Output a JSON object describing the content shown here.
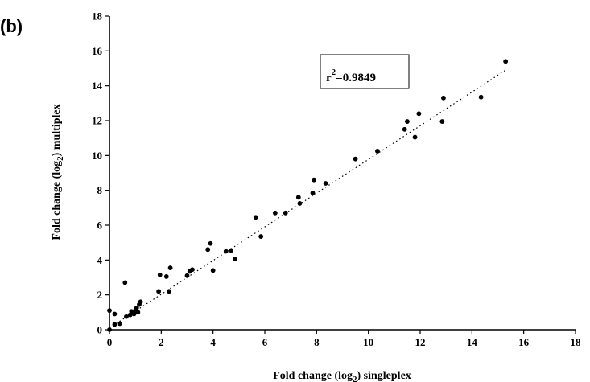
{
  "panel_label": "(b)",
  "chart_data": {
    "type": "scatter",
    "xlabel_parts": [
      "Fold change (log",
      "2",
      ") singleplex"
    ],
    "ylabel_parts": [
      "Fold change (log",
      "2",
      ") multiplex"
    ],
    "annotation": {
      "prefix": "r",
      "sup": "2",
      "suffix": "=0.9849"
    },
    "xlim": [
      0,
      18
    ],
    "ylim": [
      0,
      18
    ],
    "x_ticks": [
      0,
      2,
      4,
      6,
      8,
      10,
      12,
      14,
      16,
      18
    ],
    "y_ticks": [
      0,
      2,
      4,
      6,
      8,
      10,
      12,
      14,
      16,
      18
    ],
    "grid": false,
    "trendline": {
      "style": "dotted",
      "x": [
        0,
        15.3
      ],
      "y": [
        0.1,
        14.9
      ]
    },
    "points": [
      [
        0.0,
        1.1
      ],
      [
        0.0,
        0.0
      ],
      [
        0.2,
        0.9
      ],
      [
        0.2,
        0.3
      ],
      [
        0.4,
        0.35
      ],
      [
        0.6,
        2.7
      ],
      [
        0.65,
        0.75
      ],
      [
        0.8,
        0.85
      ],
      [
        0.85,
        1.05
      ],
      [
        0.95,
        0.9
      ],
      [
        1.0,
        1.1
      ],
      [
        1.05,
        1.25
      ],
      [
        1.1,
        1.0
      ],
      [
        1.15,
        1.45
      ],
      [
        1.2,
        1.6
      ],
      [
        1.9,
        2.2
      ],
      [
        1.95,
        3.15
      ],
      [
        2.2,
        3.05
      ],
      [
        2.3,
        2.2
      ],
      [
        2.35,
        3.55
      ],
      [
        3.0,
        3.1
      ],
      [
        3.1,
        3.35
      ],
      [
        3.2,
        3.45
      ],
      [
        3.8,
        4.6
      ],
      [
        3.9,
        4.95
      ],
      [
        4.0,
        3.4
      ],
      [
        4.5,
        4.5
      ],
      [
        4.7,
        4.55
      ],
      [
        4.85,
        4.05
      ],
      [
        5.65,
        6.45
      ],
      [
        5.85,
        5.35
      ],
      [
        6.4,
        6.7
      ],
      [
        6.8,
        6.7
      ],
      [
        7.3,
        7.6
      ],
      [
        7.35,
        7.25
      ],
      [
        7.85,
        7.85
      ],
      [
        7.9,
        8.6
      ],
      [
        8.35,
        8.4
      ],
      [
        9.5,
        9.8
      ],
      [
        10.35,
        10.25
      ],
      [
        11.4,
        11.5
      ],
      [
        11.5,
        11.95
      ],
      [
        11.8,
        11.05
      ],
      [
        11.95,
        12.4
      ],
      [
        12.85,
        11.95
      ],
      [
        12.9,
        13.3
      ],
      [
        14.35,
        13.35
      ],
      [
        15.3,
        15.4
      ]
    ]
  }
}
